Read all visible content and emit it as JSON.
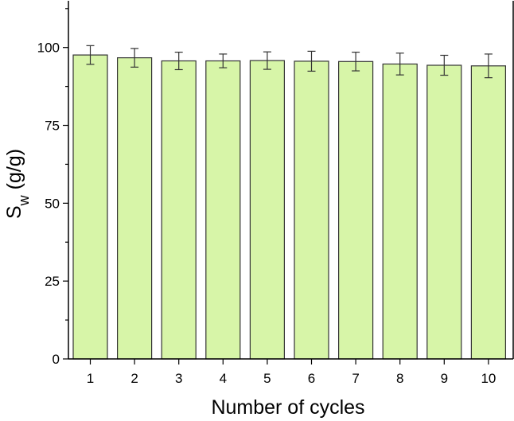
{
  "chart_data": {
    "type": "bar",
    "title": "",
    "xlabel": "Number of cycles",
    "ylabel": {
      "main": "S",
      "subscript": "w",
      "unit": " (g/g)"
    },
    "categories": [
      "1",
      "2",
      "3",
      "4",
      "5",
      "6",
      "7",
      "8",
      "9",
      "10"
    ],
    "values": [
      97.6,
      96.7,
      95.7,
      95.7,
      95.8,
      95.6,
      95.5,
      94.7,
      94.3,
      94.1
    ],
    "errors": [
      3.0,
      3.0,
      2.8,
      2.2,
      2.8,
      3.2,
      3.0,
      3.5,
      3.2,
      3.8
    ],
    "ylim": [
      0,
      115
    ],
    "yticks": [
      0,
      25,
      50,
      75,
      100
    ],
    "grid": false,
    "colors": {
      "bar_fill": "#d7f5a8",
      "bar_stroke": "#333333",
      "error_bar": "#333333",
      "axis": "#000000"
    }
  }
}
